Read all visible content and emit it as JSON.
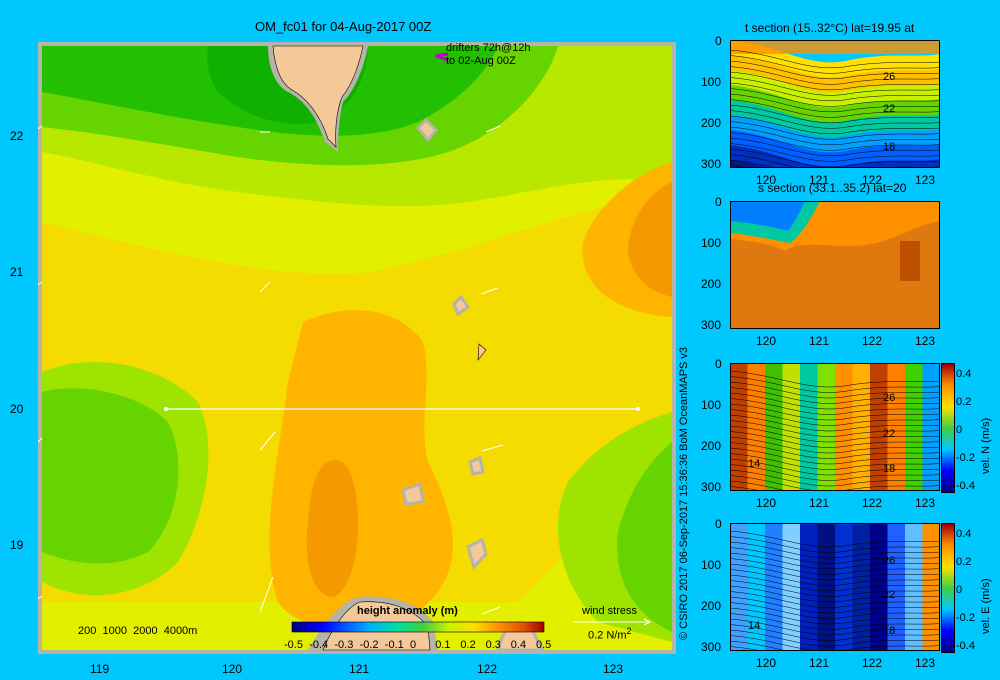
{
  "main": {
    "title": "OM_fc01 for 04-Aug-2017 00Z",
    "drifters_line1": "drifters 72h@12h",
    "drifters_line2": "to 02-Aug 00Z",
    "lat_ticks": [
      "22",
      "21",
      "20",
      "19"
    ],
    "lon_ticks": [
      "119",
      "120",
      "121",
      "122",
      "123"
    ],
    "depth_legend": [
      "200",
      "1000",
      "2000",
      "4000m"
    ],
    "colorbar_title": "height anomaly (m)",
    "colorbar_ticks": [
      "-0.5",
      "-0.4",
      "-0.3",
      "-0.2",
      "-0.1",
      "0",
      "0.1",
      "0.2",
      "0.3",
      "0.4",
      "0.5"
    ],
    "wind_label": "wind stress",
    "wind_scale": "0.2 N/m",
    "wind_scale_sup": "2"
  },
  "credit": "© CSIRO 2017   06-Sep-2017 15:36:36 BoM OceanMAPS v3",
  "panels": {
    "temp": {
      "title": "t section (15..32°C) lat=19.95 at",
      "contours": [
        "26",
        "22",
        "18"
      ]
    },
    "salt": {
      "title": "s section (33.1..35.2) lat=20"
    },
    "veln": {
      "contours": [
        "26",
        "22",
        "18",
        "14"
      ],
      "cbar_label": "vel. N (m/s)"
    },
    "vele": {
      "contours": [
        "26",
        "22",
        "18",
        "14"
      ],
      "cbar_label": "vel. E (m/s)"
    },
    "depth_ticks": [
      "0",
      "100",
      "200",
      "300"
    ],
    "lon_ticks": [
      "120",
      "121",
      "122",
      "123"
    ],
    "vel_ticks": [
      "0.4",
      "0.2",
      "0",
      "-0.2",
      "-0.4"
    ]
  },
  "colors": {
    "background": "#00c8ff",
    "land": "#f5c89a",
    "coast_shelf": "#b8b0a0"
  }
}
